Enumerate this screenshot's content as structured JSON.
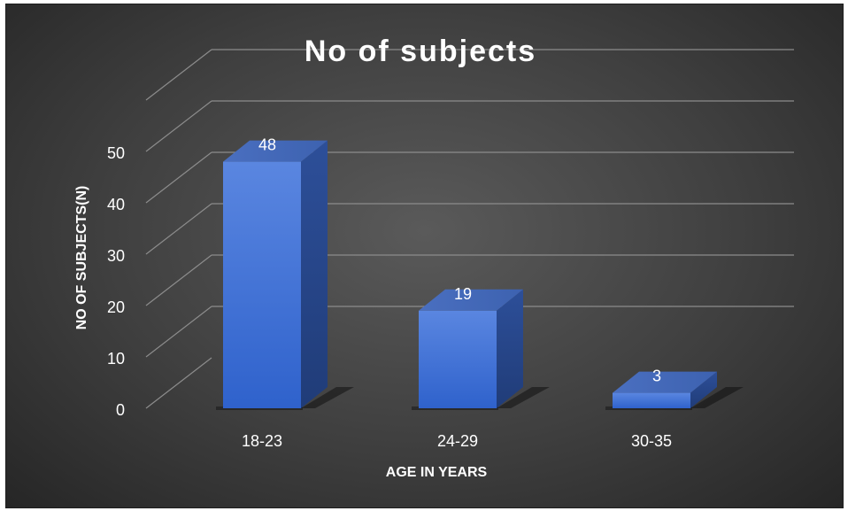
{
  "chart_data": {
    "type": "bar",
    "title": "No of subjects",
    "xlabel": "AGE IN YEARS",
    "ylabel": "NO OF SUBJECTS(N)",
    "categories": [
      "18-23",
      "24-29",
      "30-35"
    ],
    "values": [
      48,
      19,
      3
    ],
    "ylim": [
      0,
      50
    ],
    "yticks": [
      0,
      10,
      20,
      30,
      40,
      50
    ],
    "data_labels": [
      "48",
      "19",
      "3"
    ],
    "grid": true,
    "legend": "none",
    "bar_color": "#3a6fd8",
    "background_color": "#404040"
  }
}
